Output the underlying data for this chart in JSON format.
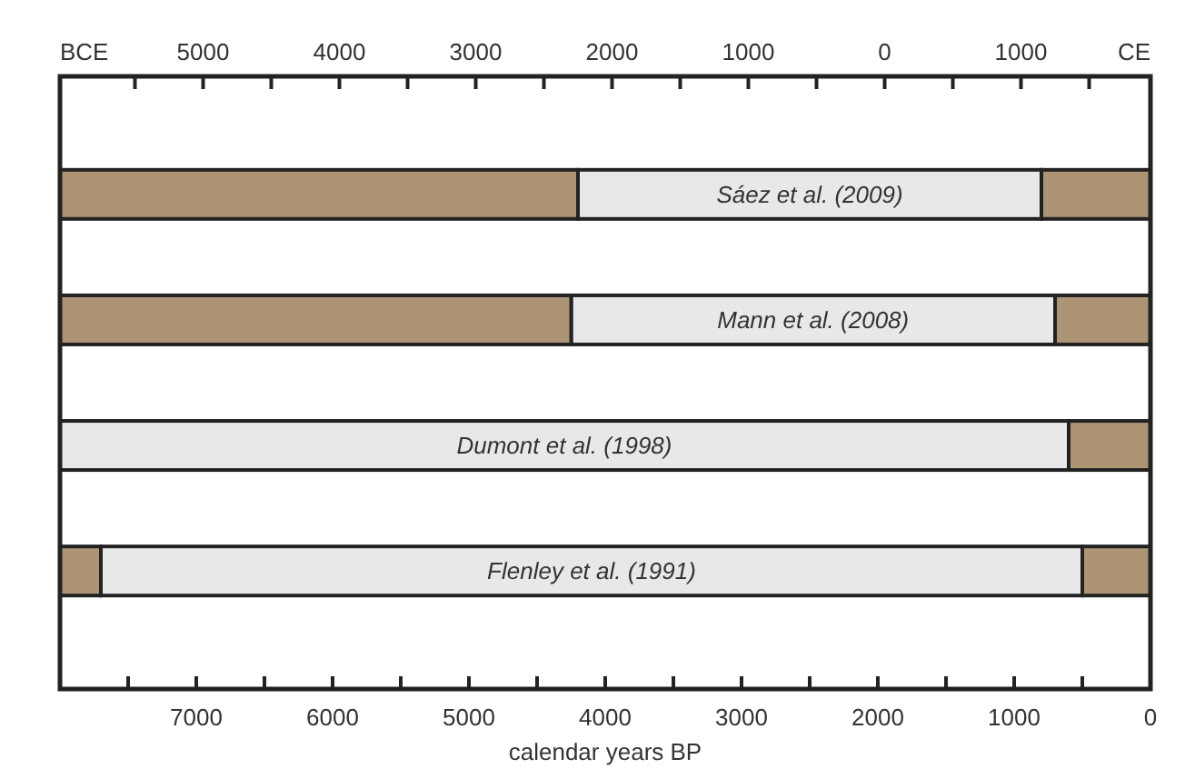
{
  "chart_data": {
    "type": "bar",
    "orientation": "horizontal",
    "stacked": true,
    "categories": [
      "Sáez et al. (2009)",
      "Mann et al. (2008)",
      "Dumont et al. (1998)",
      "Flenley et al. (1991)"
    ],
    "series": [
      {
        "color": "#ad9474",
        "values": [
          800,
          700,
          600,
          500
        ]
      },
      {
        "color": "#e8e8e8",
        "values": [
          3400,
          3550,
          7400,
          7200
        ]
      },
      {
        "color": "#ad9474",
        "values": [
          3800,
          3750,
          0,
          300
        ]
      }
    ],
    "xlim": [
      8000,
      0
    ],
    "xticks": [
      {
        "value": 7500,
        "label": null
      },
      7000,
      {
        "value": 6500,
        "label": null
      },
      6000,
      {
        "value": 5500,
        "label": null
      },
      5000,
      {
        "value": 4500,
        "label": null
      },
      4000,
      {
        "value": 3500,
        "label": null
      },
      3000,
      {
        "value": 2500,
        "label": null
      },
      2000,
      {
        "value": 1500,
        "label": null
      },
      1000,
      {
        "value": 500,
        "label": null
      },
      0
    ],
    "xlabel": "calendar years BP",
    "x2lim": [
      -6050,
      1950
    ],
    "x2ticks": [
      {
        "value": -5500,
        "label": null
      },
      {
        "value": -5000,
        "label": "5000"
      },
      {
        "value": -4500,
        "label": null
      },
      {
        "value": -4000,
        "label": "4000"
      },
      {
        "value": -3500,
        "label": null
      },
      {
        "value": -3000,
        "label": "3000"
      },
      {
        "value": -2500,
        "label": null
      },
      {
        "value": -2000,
        "label": "2000"
      },
      {
        "value": -1500,
        "label": null
      },
      {
        "value": -1000,
        "label": "1000"
      },
      {
        "value": -500,
        "label": null
      },
      0,
      {
        "value": 500,
        "label": null
      },
      1000,
      {
        "value": 1500,
        "label": null
      }
    ],
    "annotations": [
      "BCE",
      "CE"
    ]
  }
}
